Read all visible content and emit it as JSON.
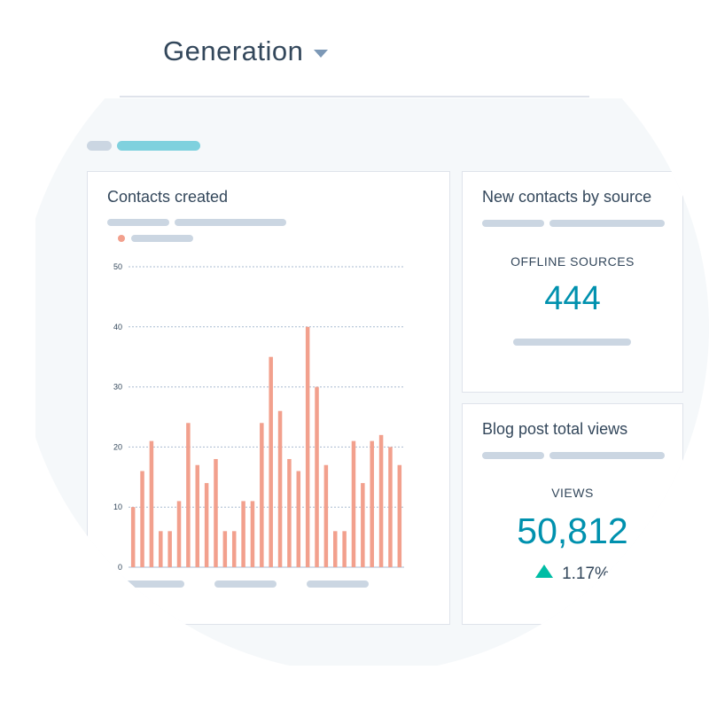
{
  "header": {
    "title": "Generation"
  },
  "cards": {
    "contacts": {
      "title": "Contacts created"
    },
    "sources": {
      "title": "New contacts by source",
      "label": "OFFLINE SOURCES",
      "value": "444"
    },
    "blog": {
      "title": "Blog post total views",
      "label": "VIEWS",
      "value": "50,812",
      "change": "1.17%"
    }
  },
  "colors": {
    "accent": "#0091ae",
    "bar": "#f2a08d",
    "up": "#00bda5",
    "text": "#33475b"
  },
  "icons": {
    "dropdown": "caret-down-icon",
    "trend": "triangle-up-icon"
  },
  "chart_data": {
    "type": "bar",
    "title": "Contacts created",
    "yticks": [
      0,
      10,
      20,
      30,
      40,
      50
    ],
    "ylim": [
      0,
      50
    ],
    "grid": true,
    "values": [
      10,
      16,
      21,
      6,
      6,
      11,
      24,
      17,
      14,
      18,
      6,
      6,
      11,
      11,
      24,
      35,
      26,
      18,
      16,
      40,
      30,
      17,
      6,
      6,
      21,
      14,
      21,
      22,
      20,
      17
    ]
  }
}
